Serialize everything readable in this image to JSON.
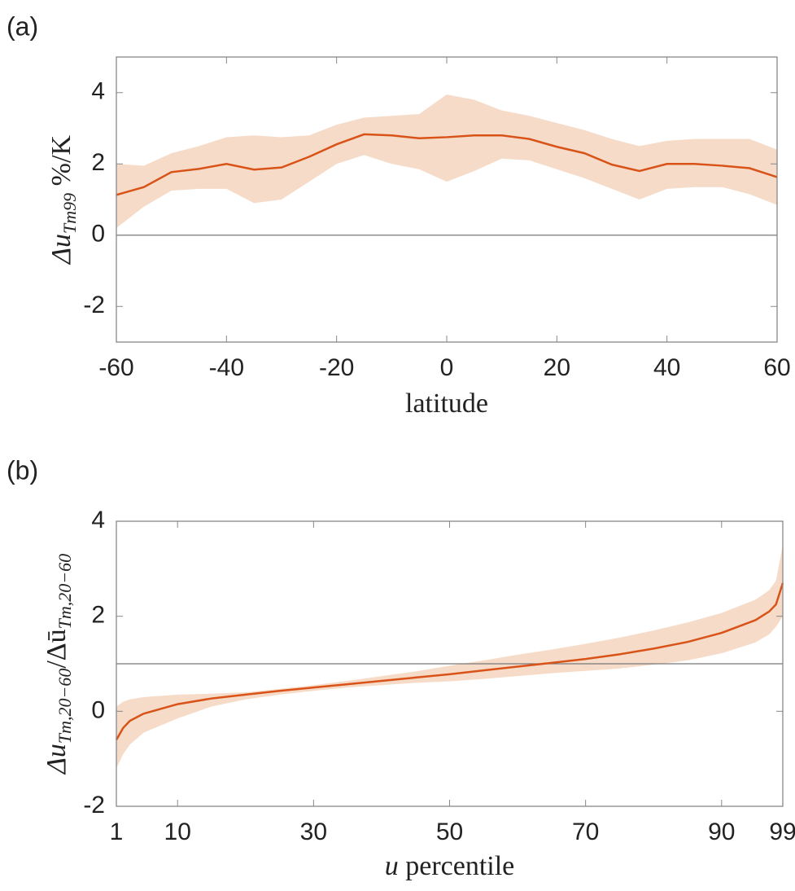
{
  "chart_data": [
    {
      "type": "line",
      "panel_label": "(a)",
      "xlabel": "latitude",
      "ylabel_parts": [
        "Δu",
        "Tm99",
        " %/K"
      ],
      "x": [
        -60,
        -55,
        -50,
        -45,
        -40,
        -35,
        -30,
        -25,
        -20,
        -15,
        -10,
        -5,
        0,
        5,
        10,
        15,
        20,
        25,
        30,
        35,
        40,
        45,
        50,
        55,
        60
      ],
      "values": [
        1.13,
        1.35,
        1.77,
        1.86,
        2.0,
        1.84,
        1.9,
        2.2,
        2.55,
        2.83,
        2.8,
        2.72,
        2.75,
        2.8,
        2.8,
        2.7,
        2.48,
        2.3,
        1.98,
        1.8,
        2.0,
        2.0,
        1.95,
        1.88,
        1.63
      ],
      "upper": [
        2.0,
        1.95,
        2.3,
        2.5,
        2.75,
        2.8,
        2.75,
        2.8,
        3.1,
        3.3,
        3.35,
        3.4,
        3.95,
        3.8,
        3.5,
        3.35,
        3.15,
        2.95,
        2.7,
        2.5,
        2.65,
        2.7,
        2.7,
        2.7,
        2.4
      ],
      "lower": [
        0.2,
        0.8,
        1.25,
        1.3,
        1.3,
        0.9,
        1.0,
        1.5,
        2.0,
        2.25,
        2.0,
        1.85,
        1.5,
        1.8,
        2.15,
        2.1,
        1.85,
        1.6,
        1.3,
        1.0,
        1.3,
        1.35,
        1.35,
        1.15,
        0.85
      ],
      "color": "#d95319",
      "band_color": "#f6dcc8",
      "reference_line": 0,
      "xlim": [
        -60,
        60
      ],
      "xticks": [
        -60,
        -40,
        -20,
        0,
        20,
        40,
        60
      ],
      "ylim": [
        -3,
        5
      ],
      "yticks": [
        -2,
        0,
        2,
        4
      ]
    },
    {
      "type": "line",
      "panel_label": "(b)",
      "xlabel_parts": [
        "u",
        " percentile"
      ],
      "ylabel_parts": [
        "Δu",
        "Tm,20−60",
        "/Δū",
        "Tm,20−60"
      ],
      "x": [
        1,
        2,
        3,
        5,
        10,
        15,
        20,
        25,
        30,
        35,
        40,
        45,
        50,
        55,
        60,
        65,
        70,
        75,
        80,
        85,
        90,
        95,
        97,
        98,
        99
      ],
      "values": [
        -0.6,
        -0.35,
        -0.2,
        -0.05,
        0.15,
        0.27,
        0.35,
        0.43,
        0.5,
        0.57,
        0.64,
        0.71,
        0.78,
        0.86,
        0.94,
        1.02,
        1.1,
        1.2,
        1.32,
        1.46,
        1.65,
        1.92,
        2.1,
        2.25,
        2.7
      ],
      "upper": [
        0.1,
        0.2,
        0.25,
        0.3,
        0.35,
        0.37,
        0.4,
        0.47,
        0.55,
        0.64,
        0.74,
        0.84,
        0.96,
        1.07,
        1.19,
        1.3,
        1.42,
        1.55,
        1.7,
        1.87,
        2.07,
        2.35,
        2.55,
        2.75,
        3.5
      ],
      "lower": [
        -1.2,
        -0.9,
        -0.7,
        -0.45,
        -0.15,
        0.1,
        0.25,
        0.35,
        0.43,
        0.5,
        0.55,
        0.6,
        0.63,
        0.68,
        0.74,
        0.8,
        0.85,
        0.9,
        0.98,
        1.07,
        1.22,
        1.45,
        1.62,
        1.78,
        2.0
      ],
      "color": "#d95319",
      "band_color": "#f6dcc8",
      "reference_line": 1,
      "xlim": [
        1,
        99
      ],
      "xticks": [
        1,
        10,
        30,
        50,
        70,
        90,
        99
      ],
      "ylim": [
        -2,
        4
      ],
      "yticks": [
        -2,
        0,
        2,
        4
      ]
    }
  ]
}
